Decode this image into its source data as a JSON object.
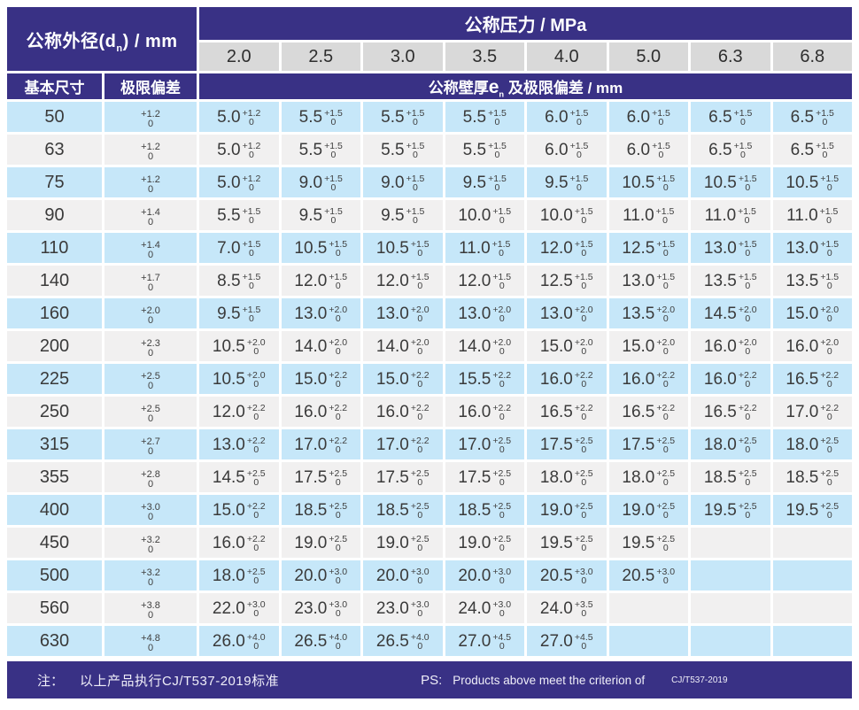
{
  "colors": {
    "header_navy": "#393185",
    "row_blue": "#c6e7f9",
    "row_gray": "#f1f0f0",
    "pressure_cell_gray": "#d9d9d9"
  },
  "header": {
    "outer_diameter": {
      "pre": "公称外径(",
      "sym": "d",
      "sub": "n",
      "post": ") / mm"
    },
    "pressure_label": "公称压力 / MPa",
    "pressure_values": [
      "2.0",
      "2.5",
      "3.0",
      "3.5",
      "4.0",
      "5.0",
      "6.3",
      "6.8"
    ],
    "basic_size_label": "基本尺寸",
    "tolerance_label": "极限偏差",
    "wall_thickness": {
      "pre": "公称壁厚",
      "sym": "e",
      "sub": "n",
      "post": " 及极限偏差 / mm"
    }
  },
  "table": {
    "tolerance_bottom": "0"
  },
  "rows": [
    {
      "size": "50",
      "deviation": "+1.2",
      "cells": [
        [
          "5.0",
          "+1.2"
        ],
        [
          "5.5",
          "+1.5"
        ],
        [
          "5.5",
          "+1.5"
        ],
        [
          "5.5",
          "+1.5"
        ],
        [
          "6.0",
          "+1.5"
        ],
        [
          "6.0",
          "+1.5"
        ],
        [
          "6.5",
          "+1.5"
        ],
        [
          "6.5",
          "+1.5"
        ]
      ]
    },
    {
      "size": "63",
      "deviation": "+1.2",
      "cells": [
        [
          "5.0",
          "+1.2"
        ],
        [
          "5.5",
          "+1.5"
        ],
        [
          "5.5",
          "+1.5"
        ],
        [
          "5.5",
          "+1.5"
        ],
        [
          "6.0",
          "+1.5"
        ],
        [
          "6.0",
          "+1.5"
        ],
        [
          "6.5",
          "+1.5"
        ],
        [
          "6.5",
          "+1.5"
        ]
      ]
    },
    {
      "size": "75",
      "deviation": "+1.2",
      "cells": [
        [
          "5.0",
          "+1.2"
        ],
        [
          "9.0",
          "+1.5"
        ],
        [
          "9.0",
          "+1.5"
        ],
        [
          "9.5",
          "+1.5"
        ],
        [
          "9.5",
          "+1.5"
        ],
        [
          "10.5",
          "+1.5"
        ],
        [
          "10.5",
          "+1.5"
        ],
        [
          "10.5",
          "+1.5"
        ]
      ]
    },
    {
      "size": "90",
      "deviation": "+1.4",
      "cells": [
        [
          "5.5",
          "+1.5"
        ],
        [
          "9.5",
          "+1.5"
        ],
        [
          "9.5",
          "+1.5"
        ],
        [
          "10.0",
          "+1.5"
        ],
        [
          "10.0",
          "+1.5"
        ],
        [
          "11.0",
          "+1.5"
        ],
        [
          "11.0",
          "+1.5"
        ],
        [
          "11.0",
          "+1.5"
        ]
      ]
    },
    {
      "size": "110",
      "deviation": "+1.4",
      "cells": [
        [
          "7.0",
          "+1.5"
        ],
        [
          "10.5",
          "+1.5"
        ],
        [
          "10.5",
          "+1.5"
        ],
        [
          "11.0",
          "+1.5"
        ],
        [
          "12.0",
          "+1.5"
        ],
        [
          "12.5",
          "+1.5"
        ],
        [
          "13.0",
          "+1.5"
        ],
        [
          "13.0",
          "+1.5"
        ]
      ]
    },
    {
      "size": "140",
      "deviation": "+1.7",
      "cells": [
        [
          "8.5",
          "+1.5"
        ],
        [
          "12.0",
          "+1.5"
        ],
        [
          "12.0",
          "+1.5"
        ],
        [
          "12.0",
          "+1.5"
        ],
        [
          "12.5",
          "+1.5"
        ],
        [
          "13.0",
          "+1.5"
        ],
        [
          "13.5",
          "+1.5"
        ],
        [
          "13.5",
          "+1.5"
        ]
      ]
    },
    {
      "size": "160",
      "deviation": "+2.0",
      "cells": [
        [
          "9.5",
          "+1.5"
        ],
        [
          "13.0",
          "+2.0"
        ],
        [
          "13.0",
          "+2.0"
        ],
        [
          "13.0",
          "+2.0"
        ],
        [
          "13.0",
          "+2.0"
        ],
        [
          "13.5",
          "+2.0"
        ],
        [
          "14.5",
          "+2.0"
        ],
        [
          "15.0",
          "+2.0"
        ]
      ]
    },
    {
      "size": "200",
      "deviation": "+2.3",
      "cells": [
        [
          "10.5",
          "+2.0"
        ],
        [
          "14.0",
          "+2.0"
        ],
        [
          "14.0",
          "+2.0"
        ],
        [
          "14.0",
          "+2.0"
        ],
        [
          "15.0",
          "+2.0"
        ],
        [
          "15.0",
          "+2.0"
        ],
        [
          "16.0",
          "+2.0"
        ],
        [
          "16.0",
          "+2.0"
        ]
      ]
    },
    {
      "size": "225",
      "deviation": "+2.5",
      "cells": [
        [
          "10.5",
          "+2.0"
        ],
        [
          "15.0",
          "+2.2"
        ],
        [
          "15.0",
          "+2.2"
        ],
        [
          "15.5",
          "+2.2"
        ],
        [
          "16.0",
          "+2.2"
        ],
        [
          "16.0",
          "+2.2"
        ],
        [
          "16.0",
          "+2.2"
        ],
        [
          "16.5",
          "+2.2"
        ]
      ]
    },
    {
      "size": "250",
      "deviation": "+2.5",
      "cells": [
        [
          "12.0",
          "+2.2"
        ],
        [
          "16.0",
          "+2.2"
        ],
        [
          "16.0",
          "+2.2"
        ],
        [
          "16.0",
          "+2.2"
        ],
        [
          "16.5",
          "+2.2"
        ],
        [
          "16.5",
          "+2.2"
        ],
        [
          "16.5",
          "+2.2"
        ],
        [
          "17.0",
          "+2.2"
        ]
      ]
    },
    {
      "size": "315",
      "deviation": "+2.7",
      "cells": [
        [
          "13.0",
          "+2.2"
        ],
        [
          "17.0",
          "+2.2"
        ],
        [
          "17.0",
          "+2.2"
        ],
        [
          "17.0",
          "+2.5"
        ],
        [
          "17.5",
          "+2.5"
        ],
        [
          "17.5",
          "+2.5"
        ],
        [
          "18.0",
          "+2.5"
        ],
        [
          "18.0",
          "+2.5"
        ]
      ]
    },
    {
      "size": "355",
      "deviation": "+2.8",
      "cells": [
        [
          "14.5",
          "+2.5"
        ],
        [
          "17.5",
          "+2.5"
        ],
        [
          "17.5",
          "+2.5"
        ],
        [
          "17.5",
          "+2.5"
        ],
        [
          "18.0",
          "+2.5"
        ],
        [
          "18.0",
          "+2.5"
        ],
        [
          "18.5",
          "+2.5"
        ],
        [
          "18.5",
          "+2.5"
        ]
      ]
    },
    {
      "size": "400",
      "deviation": "+3.0",
      "cells": [
        [
          "15.0",
          "+2.2"
        ],
        [
          "18.5",
          "+2.5"
        ],
        [
          "18.5",
          "+2.5"
        ],
        [
          "18.5",
          "+2.5"
        ],
        [
          "19.0",
          "+2.5"
        ],
        [
          "19.0",
          "+2.5"
        ],
        [
          "19.5",
          "+2.5"
        ],
        [
          "19.5",
          "+2.5"
        ]
      ]
    },
    {
      "size": "450",
      "deviation": "+3.2",
      "cells": [
        [
          "16.0",
          "+2.2"
        ],
        [
          "19.0",
          "+2.5"
        ],
        [
          "19.0",
          "+2.5"
        ],
        [
          "19.0",
          "+2.5"
        ],
        [
          "19.5",
          "+2.5"
        ],
        [
          "19.5",
          "+2.5"
        ],
        null,
        null
      ]
    },
    {
      "size": "500",
      "deviation": "+3.2",
      "cells": [
        [
          "18.0",
          "+2.5"
        ],
        [
          "20.0",
          "+3.0"
        ],
        [
          "20.0",
          "+3.0"
        ],
        [
          "20.0",
          "+3.0"
        ],
        [
          "20.5",
          "+3.0"
        ],
        [
          "20.5",
          "+3.0"
        ],
        null,
        null
      ]
    },
    {
      "size": "560",
      "deviation": "+3.8",
      "cells": [
        [
          "22.0",
          "+3.0"
        ],
        [
          "23.0",
          "+3.0"
        ],
        [
          "23.0",
          "+3.0"
        ],
        [
          "24.0",
          "+3.0"
        ],
        [
          "24.0",
          "+3.5"
        ],
        null,
        null,
        null
      ]
    },
    {
      "size": "630",
      "deviation": "+4.8",
      "cells": [
        [
          "26.0",
          "+4.0"
        ],
        [
          "26.5",
          "+4.0"
        ],
        [
          "26.5",
          "+4.0"
        ],
        [
          "27.0",
          "+4.5"
        ],
        [
          "27.0",
          "+4.5"
        ],
        null,
        null,
        null
      ]
    }
  ],
  "footer": {
    "note_label": "注：",
    "note_text": "以上产品执行CJ/T537-2019标准",
    "ps_label": "PS:",
    "ps_text": "Products above meet the criterion of",
    "ps_standard": "CJ/T537-2019"
  }
}
